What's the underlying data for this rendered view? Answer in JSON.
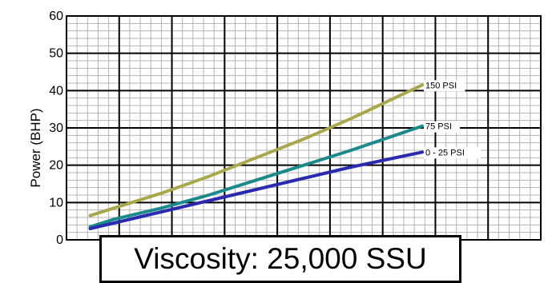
{
  "chart_data": {
    "type": "line",
    "ylabel": "Power (BHP)",
    "xlabel": "",
    "ylim": [
      0,
      60
    ],
    "yticks": [
      0,
      10,
      20,
      30,
      40,
      50,
      60
    ],
    "xlim": [
      0,
      10
    ],
    "grid": true,
    "series": [
      {
        "name": "150 PSI",
        "color": "#a8a84a",
        "x": [
          0.5,
          1,
          2,
          3,
          4,
          5,
          6,
          7.5
        ],
        "y": [
          6.5,
          8.5,
          12.5,
          17,
          22,
          27,
          32.5,
          41.5
        ]
      },
      {
        "name": "75 PSI",
        "color": "#1a8a8a",
        "x": [
          0.5,
          1,
          2,
          3,
          4,
          5,
          6,
          7.5
        ],
        "y": [
          3.5,
          5.5,
          8.5,
          12,
          16,
          20,
          24,
          30.5
        ]
      },
      {
        "name": "0 - 25 PSI",
        "color": "#2a2ab0",
        "x": [
          0.5,
          1,
          2,
          3,
          4,
          5,
          6,
          7.5
        ],
        "y": [
          3,
          4.5,
          7.5,
          10.5,
          13.5,
          16.5,
          19.5,
          23.5
        ]
      }
    ],
    "annotation": "Viscosity: 25,000 SSU"
  }
}
